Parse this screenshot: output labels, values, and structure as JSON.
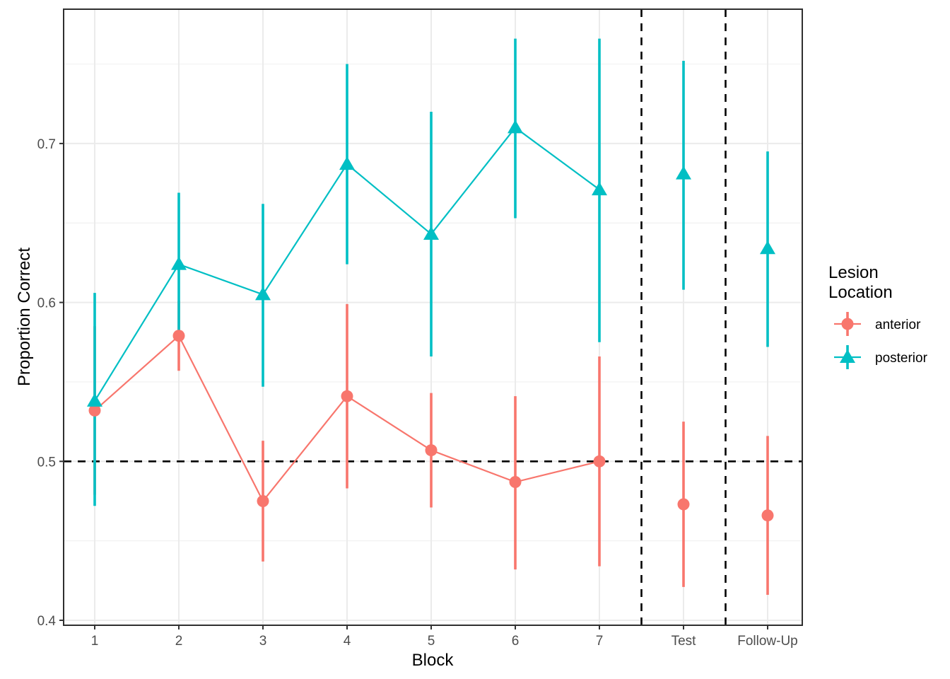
{
  "figure": {
    "background": "#FFFFFF",
    "panel_border_color": "#2F2F2F",
    "grid_major_color": "#EBEBEB",
    "grid_minor_color": "#F1F1F1",
    "tick_color": "#333333",
    "tick_label_color": "#4D4D4D"
  },
  "axes": {
    "x_title": "Block",
    "y_title": "Proportion Correct",
    "x_tick_labels": [
      "1",
      "2",
      "3",
      "4",
      "5",
      "6",
      "7",
      "Test",
      "Follow-Up"
    ],
    "y_tick_labels": [
      "0.4",
      "0.5",
      "0.6",
      "0.7"
    ]
  },
  "legend": {
    "title_line1": "Lesion",
    "title_line2": "Location",
    "entries": [
      {
        "label": "anterior",
        "color": "#F8766D",
        "marker": "circle"
      },
      {
        "label": "posterior",
        "color": "#00BFC4",
        "marker": "triangle"
      }
    ]
  },
  "chart_data": {
    "type": "line",
    "subtype": "pointrange-with-errorbars",
    "title": "",
    "xlabel": "Block",
    "ylabel": "Proportion Correct",
    "x_categories": [
      "1",
      "2",
      "3",
      "4",
      "5",
      "6",
      "7",
      "Test",
      "Follow-Up"
    ],
    "y_ticks": [
      0.4,
      0.5,
      0.6,
      0.7
    ],
    "y_tick_labels": [
      "0.4",
      "0.5",
      "0.6",
      "0.7"
    ],
    "y_minor_ticks": [
      0.45,
      0.55,
      0.65,
      0.75
    ],
    "ylim": [
      0.397,
      0.785
    ],
    "grid": "major-and-minor-horizontal, major-vertical",
    "legend_position": "right",
    "legend_title": "Lesion Location",
    "connected_categories": [
      "1",
      "2",
      "3",
      "4",
      "5",
      "6",
      "7"
    ],
    "reference_lines": {
      "horizontal": {
        "y": 0.5,
        "style": "dashed",
        "color": "#000000"
      },
      "vertical": [
        {
          "between": [
            "7",
            "Test"
          ],
          "x_units": 7.5,
          "style": "dashed",
          "color": "#000000"
        },
        {
          "between": [
            "Test",
            "Follow-Up"
          ],
          "x_units": 8.5,
          "style": "dashed",
          "color": "#000000"
        }
      ]
    },
    "series": [
      {
        "name": "anterior",
        "color": "#F8766D",
        "marker": "circle",
        "points": [
          {
            "x": "1",
            "y": 0.532,
            "ci_low": 0.479,
            "ci_high": 0.585
          },
          {
            "x": "2",
            "y": 0.579,
            "ci_low": 0.557,
            "ci_high": 0.601
          },
          {
            "x": "3",
            "y": 0.475,
            "ci_low": 0.437,
            "ci_high": 0.513
          },
          {
            "x": "4",
            "y": 0.541,
            "ci_low": 0.483,
            "ci_high": 0.599
          },
          {
            "x": "5",
            "y": 0.507,
            "ci_low": 0.471,
            "ci_high": 0.543
          },
          {
            "x": "6",
            "y": 0.487,
            "ci_low": 0.432,
            "ci_high": 0.541
          },
          {
            "x": "7",
            "y": 0.5,
            "ci_low": 0.434,
            "ci_high": 0.566
          },
          {
            "x": "Test",
            "y": 0.473,
            "ci_low": 0.421,
            "ci_high": 0.525
          },
          {
            "x": "Follow-Up",
            "y": 0.466,
            "ci_low": 0.416,
            "ci_high": 0.516
          }
        ]
      },
      {
        "name": "posterior",
        "color": "#00BFC4",
        "marker": "triangle",
        "points": [
          {
            "x": "1",
            "y": 0.538,
            "ci_low": 0.472,
            "ci_high": 0.606
          },
          {
            "x": "2",
            "y": 0.624,
            "ci_low": 0.58,
            "ci_high": 0.669
          },
          {
            "x": "3",
            "y": 0.605,
            "ci_low": 0.547,
            "ci_high": 0.662
          },
          {
            "x": "4",
            "y": 0.687,
            "ci_low": 0.624,
            "ci_high": 0.75
          },
          {
            "x": "5",
            "y": 0.643,
            "ci_low": 0.566,
            "ci_high": 0.72
          },
          {
            "x": "6",
            "y": 0.71,
            "ci_low": 0.653,
            "ci_high": 0.766
          },
          {
            "x": "7",
            "y": 0.671,
            "ci_low": 0.575,
            "ci_high": 0.766
          },
          {
            "x": "Test",
            "y": 0.681,
            "ci_low": 0.608,
            "ci_high": 0.752
          },
          {
            "x": "Follow-Up",
            "y": 0.634,
            "ci_low": 0.572,
            "ci_high": 0.695
          }
        ]
      }
    ]
  }
}
